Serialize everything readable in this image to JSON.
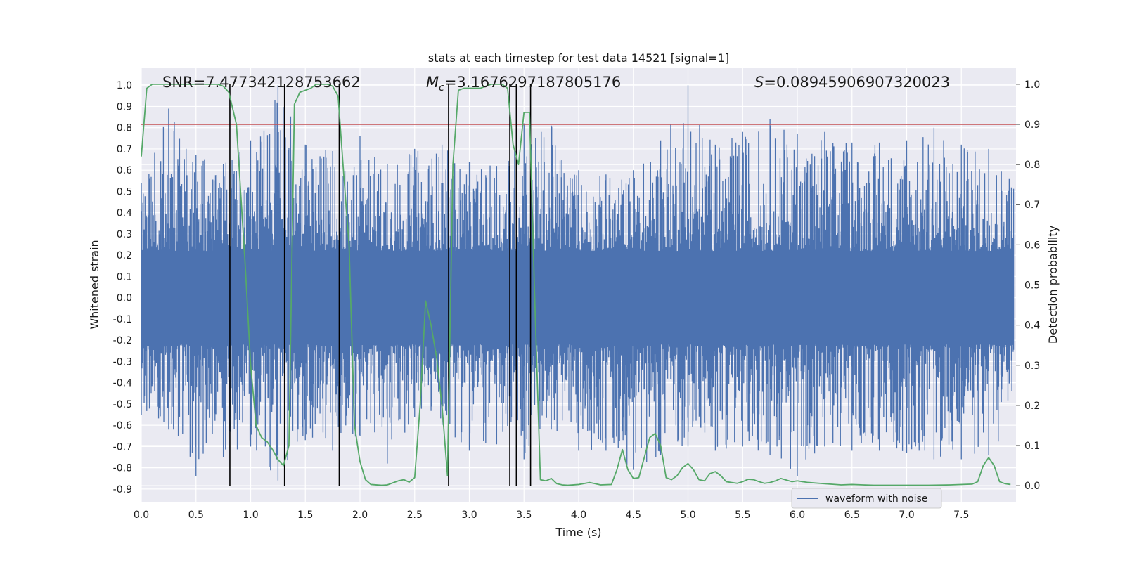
{
  "chart_data": {
    "type": "line",
    "title": "stats at each timestep for test data 14521 [signal=1]",
    "xlabel": "Time (s)",
    "ylabel_left": "Whitened strain",
    "ylabel_right": "Detection probability",
    "xlim": [
      0.0,
      8.0
    ],
    "ylim_left": [
      -0.96,
      1.08
    ],
    "ylim_right": [
      -0.04,
      1.04
    ],
    "x_ticks": [
      "0.0",
      "0.5",
      "1.0",
      "1.5",
      "2.0",
      "2.5",
      "3.0",
      "3.5",
      "4.0",
      "4.5",
      "5.0",
      "5.5",
      "6.0",
      "6.5",
      "7.0",
      "7.5"
    ],
    "y_ticks_left": [
      "1.0",
      "0.9",
      "0.8",
      "0.7",
      "0.6",
      "0.5",
      "0.4",
      "0.3",
      "0.2",
      "0.1",
      "0.0",
      "-0.1",
      "-0.2",
      "-0.3",
      "-0.4",
      "-0.5",
      "-0.6",
      "-0.7",
      "-0.8",
      "-0.9"
    ],
    "y_ticks_right": [
      "1.0",
      "0.9",
      "0.8",
      "0.7",
      "0.6",
      "0.5",
      "0.4",
      "0.3",
      "0.2",
      "0.1",
      "0.0"
    ],
    "grid": true,
    "legend": {
      "location": "lower-right",
      "entries": [
        "waveform with noise"
      ]
    },
    "annotations": {
      "snr": "SNR=7.477342128753662",
      "mc_symbol": "M",
      "mc_sub": "c",
      "mc_value": "=3.1676297187805176",
      "s_symbol": "S",
      "s_value": "=0.08945906907320023"
    },
    "colors": {
      "waveform": "#4c72b0",
      "probability": "#55a868",
      "threshold": "#c44e52",
      "markers": "#000000",
      "background": "#eaeaf2"
    },
    "threshold": {
      "axis": "right",
      "value": 0.9
    },
    "vertical_markers": [
      0.81,
      1.31,
      1.81,
      2.81,
      3.37,
      3.43,
      3.56
    ],
    "waveform_envelope": {
      "x": [
        0.0,
        0.25,
        0.5,
        0.75,
        1.0,
        1.25,
        1.5,
        1.75,
        2.0,
        2.25,
        2.5,
        2.75,
        3.0,
        3.25,
        3.5,
        3.75,
        4.0,
        4.25,
        4.5,
        4.75,
        5.0,
        5.25,
        5.5,
        5.75,
        6.0,
        6.25,
        6.5,
        6.75,
        7.0,
        7.25,
        7.5,
        7.75,
        8.0
      ],
      "upper": [
        0.54,
        0.89,
        0.67,
        0.63,
        0.74,
        1.0,
        0.72,
        0.69,
        0.76,
        0.63,
        0.7,
        0.72,
        0.64,
        0.62,
        0.82,
        0.81,
        0.6,
        0.58,
        0.6,
        0.74,
        1.0,
        0.72,
        0.78,
        0.84,
        0.77,
        0.78,
        0.73,
        0.73,
        0.74,
        0.8,
        0.72,
        0.7,
        0.6
      ],
      "lower": [
        -0.55,
        -0.62,
        -0.84,
        -0.75,
        -0.7,
        -0.86,
        -0.67,
        -0.72,
        -0.65,
        -0.78,
        -0.56,
        -0.6,
        -0.72,
        -0.69,
        -0.76,
        -0.62,
        -0.72,
        -0.72,
        -0.81,
        -0.74,
        -0.7,
        -0.72,
        -0.7,
        -0.74,
        -0.84,
        -0.7,
        -0.72,
        -0.72,
        -0.73,
        -0.76,
        -0.76,
        -0.74,
        -0.6
      ]
    },
    "series": [
      {
        "name": "detection probability",
        "axis": "right",
        "x": [
          0.0,
          0.05,
          0.1,
          0.2,
          0.3,
          0.4,
          0.5,
          0.6,
          0.7,
          0.75,
          0.8,
          0.87,
          0.95,
          1.0,
          1.05,
          1.1,
          1.15,
          1.2,
          1.25,
          1.3,
          1.35,
          1.4,
          1.45,
          1.5,
          1.55,
          1.6,
          1.65,
          1.7,
          1.75,
          1.8,
          1.85,
          1.9,
          1.95,
          2.0,
          2.05,
          2.1,
          2.2,
          2.25,
          2.3,
          2.35,
          2.4,
          2.45,
          2.5,
          2.55,
          2.6,
          2.65,
          2.7,
          2.75,
          2.8,
          2.85,
          2.9,
          2.95,
          3.0,
          3.1,
          3.2,
          3.3,
          3.35,
          3.4,
          3.45,
          3.5,
          3.55,
          3.6,
          3.65,
          3.7,
          3.75,
          3.8,
          3.85,
          3.9,
          4.0,
          4.1,
          4.15,
          4.2,
          4.3,
          4.35,
          4.4,
          4.45,
          4.5,
          4.55,
          4.6,
          4.65,
          4.7,
          4.75,
          4.8,
          4.85,
          4.9,
          4.95,
          5.0,
          5.05,
          5.1,
          5.15,
          5.2,
          5.25,
          5.3,
          5.35,
          5.4,
          5.45,
          5.5,
          5.55,
          5.6,
          5.65,
          5.7,
          5.75,
          5.8,
          5.85,
          5.9,
          5.95,
          6.0,
          6.05,
          6.1,
          6.2,
          6.3,
          6.4,
          6.5,
          6.6,
          6.7,
          6.8,
          6.9,
          7.0,
          7.2,
          7.4,
          7.6,
          7.65,
          7.7,
          7.75,
          7.8,
          7.85,
          7.9,
          7.95
        ],
        "y": [
          0.82,
          0.99,
          1.0,
          1.0,
          1.0,
          1.0,
          1.0,
          1.0,
          1.0,
          0.995,
          0.98,
          0.9,
          0.55,
          0.3,
          0.15,
          0.12,
          0.11,
          0.09,
          0.065,
          0.05,
          0.1,
          0.95,
          0.98,
          0.985,
          0.99,
          1.0,
          1.0,
          1.0,
          0.995,
          0.97,
          0.78,
          0.6,
          0.15,
          0.06,
          0.015,
          0.003,
          0.001,
          0.002,
          0.007,
          0.012,
          0.015,
          0.009,
          0.02,
          0.2,
          0.46,
          0.4,
          0.32,
          0.2,
          0.025,
          0.8,
          0.985,
          0.99,
          0.99,
          0.99,
          1.0,
          1.0,
          0.99,
          0.85,
          0.8,
          0.93,
          0.93,
          0.45,
          0.015,
          0.012,
          0.018,
          0.005,
          0.002,
          0.001,
          0.003,
          0.008,
          0.005,
          0.002,
          0.003,
          0.04,
          0.09,
          0.04,
          0.018,
          0.02,
          0.07,
          0.12,
          0.13,
          0.1,
          0.02,
          0.015,
          0.025,
          0.045,
          0.055,
          0.04,
          0.015,
          0.012,
          0.03,
          0.035,
          0.025,
          0.01,
          0.008,
          0.006,
          0.01,
          0.016,
          0.015,
          0.01,
          0.006,
          0.008,
          0.012,
          0.018,
          0.014,
          0.01,
          0.012,
          0.01,
          0.008,
          0.006,
          0.004,
          0.002,
          0.003,
          0.002,
          0.001,
          0.001,
          0.001,
          0.001,
          0.001,
          0.002,
          0.004,
          0.01,
          0.05,
          0.07,
          0.05,
          0.01,
          0.005,
          0.003
        ]
      }
    ]
  }
}
